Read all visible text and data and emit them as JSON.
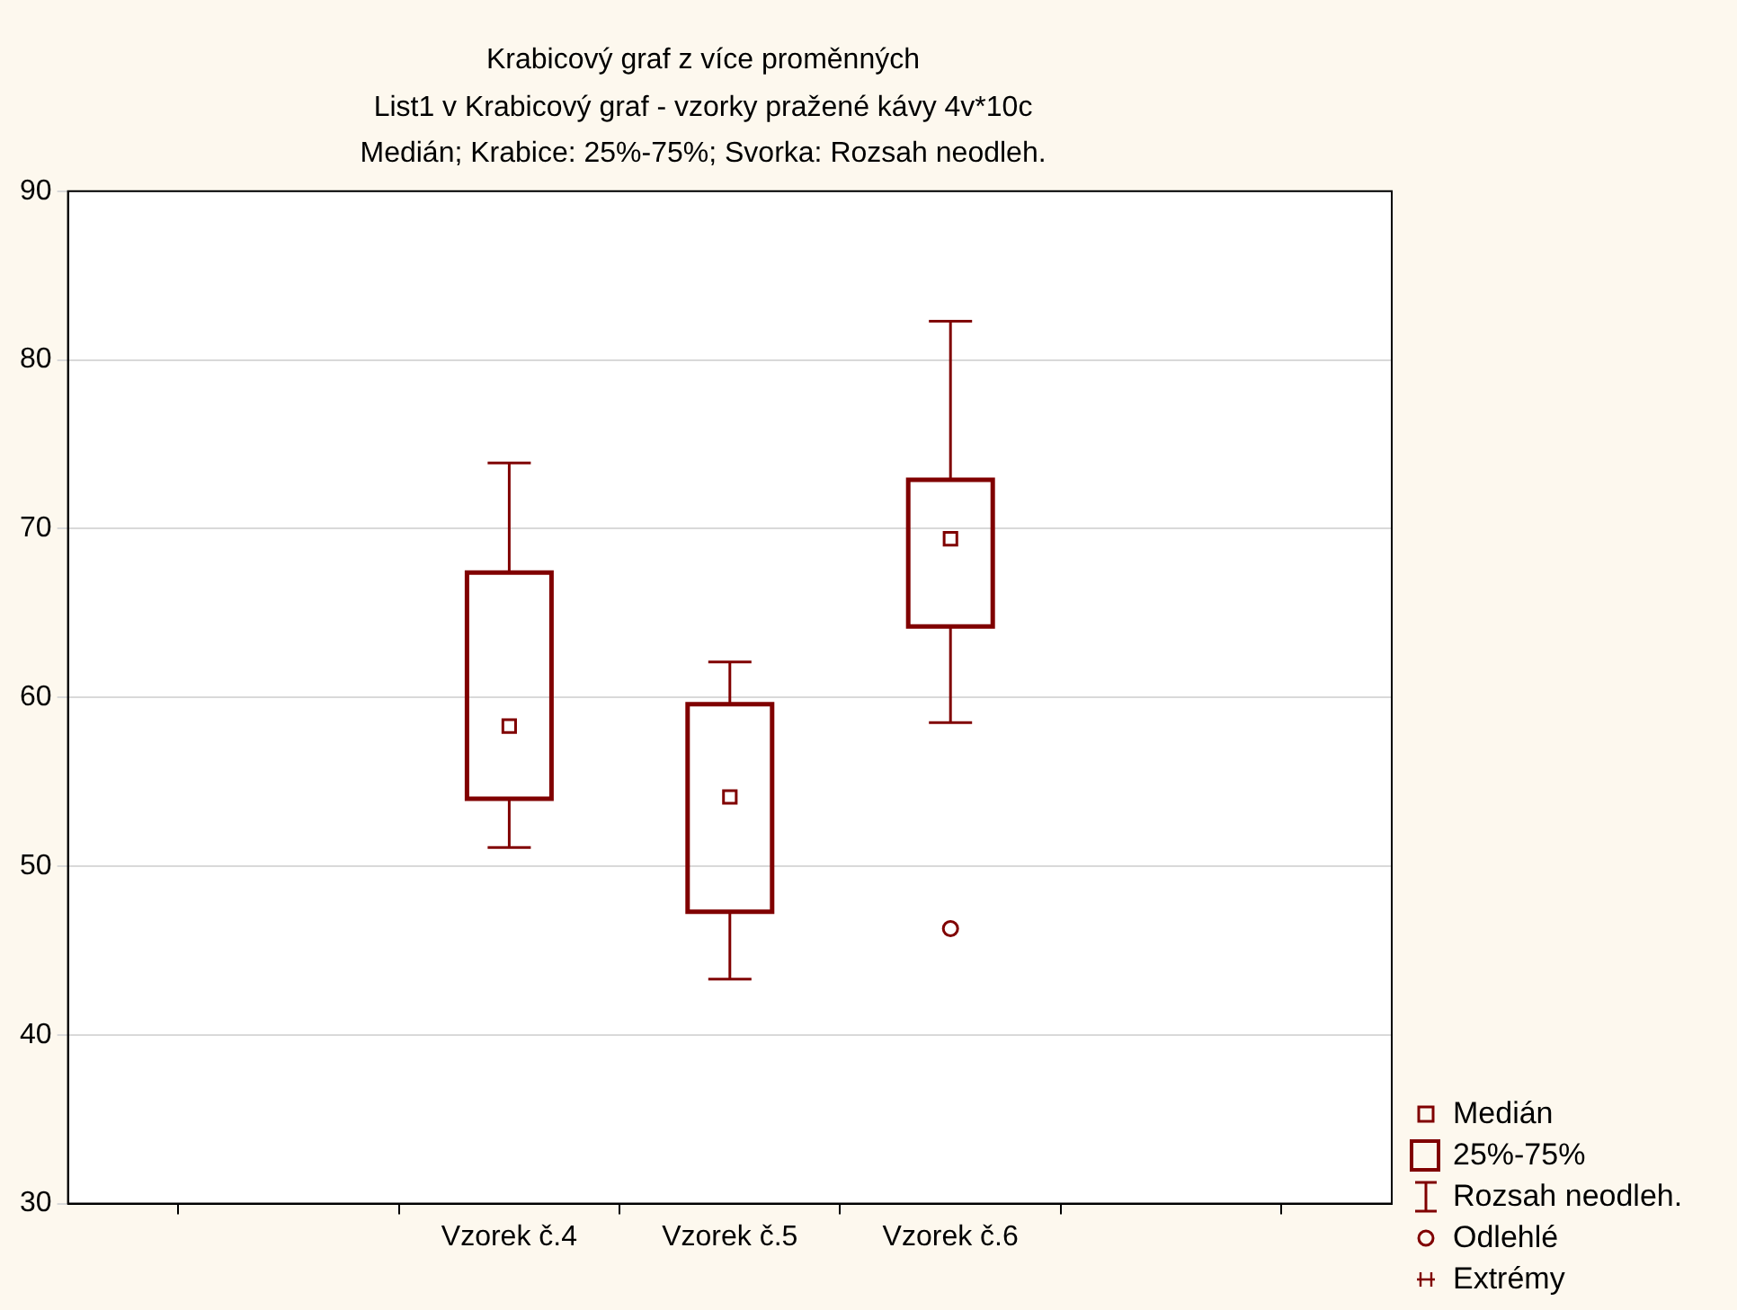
{
  "chart_data": {
    "type": "box",
    "title": "Krabicový graf z více proměnných",
    "subtitle": "List1 v Krabicový graf - vzorky pražené kávy 4v*10c\nMedián; Krabice: 25%-75%; Svorka: Rozsah neodleh.",
    "categories": [
      null,
      null,
      "Vzorek č.4",
      "Vzorek č.5",
      "Vzorek č.6",
      null,
      null
    ],
    "color": "#800000",
    "boxes": [
      null,
      null,
      {
        "low": 51.1,
        "q1": 54.0,
        "median": 58.3,
        "q3": 67.4,
        "high": 73.9
      },
      {
        "low": 43.3,
        "q1": 47.3,
        "median": 54.1,
        "q3": 59.6,
        "high": 62.1
      },
      {
        "low": 58.5,
        "q1": 64.2,
        "median": 69.4,
        "q3": 72.9,
        "high": 82.3,
        "outliers": [
          46.3
        ]
      },
      null,
      null
    ],
    "ylim": [
      30,
      90
    ],
    "yticks": [
      30,
      40,
      50,
      60,
      70,
      80,
      90
    ],
    "grid": "y",
    "annotations": [
      "Medián",
      "25%-75%",
      "Rozsah neodleh.",
      "Odlehlé",
      "Extrémy"
    ]
  }
}
